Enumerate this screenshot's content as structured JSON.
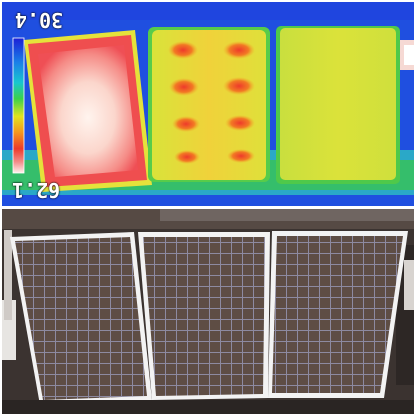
{
  "thermal": {
    "scale_max_label": "30.4",
    "scale_min_label": "62.1",
    "scale_orientation": "rotated-180",
    "palette": [
      "#1b1fd6",
      "#1d6fe6",
      "#19c3d6",
      "#35d04b",
      "#d8e51f",
      "#f5a21c",
      "#ee3a2b",
      "#f07a7a",
      "#f8c8c0",
      "#ffffff"
    ],
    "background_color": "#1f4fe0",
    "panels": [
      {
        "id": "panel-left",
        "dominant_color": "#f25a5a",
        "hotspot_color": "#fbd6cc"
      },
      {
        "id": "panel-middle",
        "dominant_color": "#e7dc3a",
        "hotspot_color": "#f06a2a"
      },
      {
        "id": "panel-right",
        "dominant_color": "#d7e23a"
      }
    ]
  },
  "photo": {
    "panel_count": 3,
    "cell_color": "#5e4d44",
    "frame_color": "#f3f3f3",
    "background_color": "#3b3330"
  }
}
